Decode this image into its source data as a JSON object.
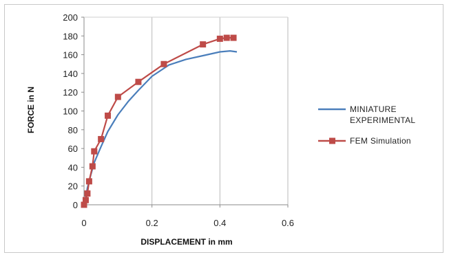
{
  "chart_data": {
    "type": "line",
    "xlabel": "DISPLACEMENT in mm",
    "ylabel": "FORCE in N",
    "xlim": [
      0,
      0.6
    ],
    "ylim": [
      0,
      200
    ],
    "xticks": [
      "0",
      "0.2",
      "0.4",
      "0.6"
    ],
    "yticks": [
      "0",
      "20",
      "40",
      "60",
      "80",
      "100",
      "120",
      "140",
      "160",
      "180",
      "200"
    ],
    "grid": "vertical",
    "legend_position": "right",
    "series": [
      {
        "name_lines": [
          "MINIATURE",
          "EXPERIMENTAL"
        ],
        "color": "#4a7ebb",
        "marker": "none",
        "x": [
          0,
          0.005,
          0.01,
          0.02,
          0.03,
          0.05,
          0.07,
          0.1,
          0.13,
          0.16,
          0.2,
          0.25,
          0.3,
          0.35,
          0.4,
          0.43,
          0.45
        ],
        "y": [
          0,
          8,
          18,
          32,
          45,
          62,
          78,
          96,
          110,
          122,
          137,
          149,
          155,
          159,
          163,
          164,
          163
        ]
      },
      {
        "name_lines": [
          "FEM Simulation"
        ],
        "color": "#be4b48",
        "marker": "square",
        "x": [
          0,
          0.005,
          0.01,
          0.015,
          0.025,
          0.03,
          0.05,
          0.07,
          0.1,
          0.16,
          0.235,
          0.35,
          0.4,
          0.42,
          0.44
        ],
        "y": [
          0,
          5,
          12,
          25,
          41,
          57,
          70,
          95,
          115,
          131,
          150,
          171,
          177,
          178,
          178
        ]
      }
    ]
  }
}
